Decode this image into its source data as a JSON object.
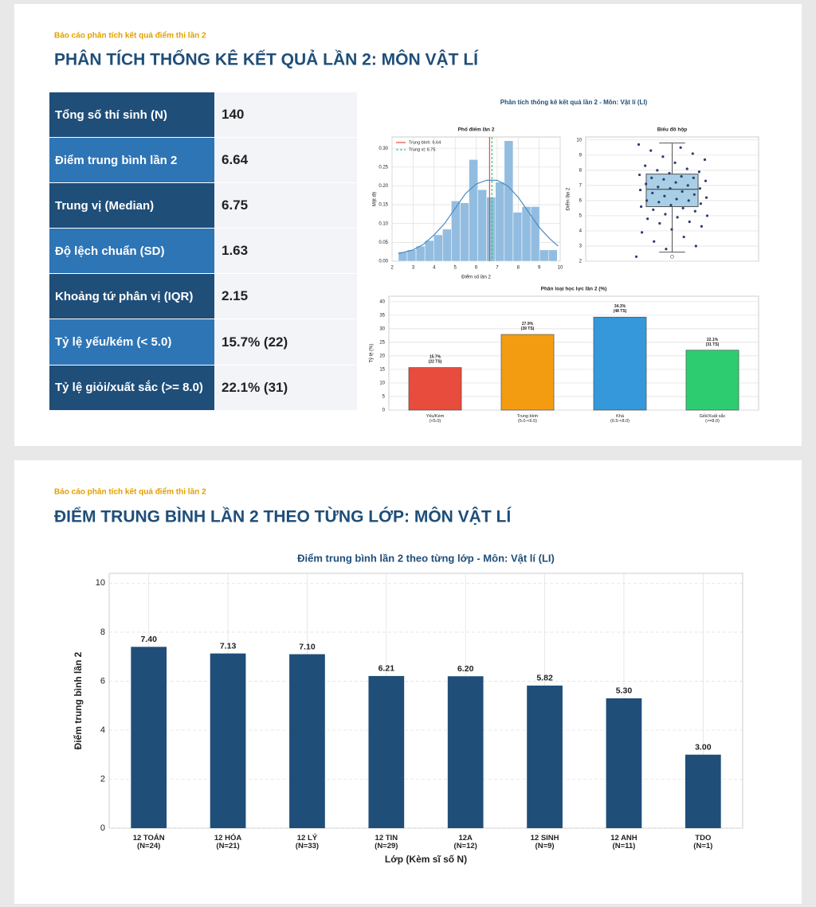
{
  "slides": [
    {
      "kicker": "Báo cáo phân tích kết quả điểm thi lần 2",
      "title": "PHÂN TÍCH THỐNG KÊ KẾT QUẢ LẦN 2: MÔN VẬT LÍ",
      "table": {
        "rows": [
          [
            "Tổng số thí sinh (N)",
            "140"
          ],
          [
            "Điểm trung bình lần 2",
            "6.64"
          ],
          [
            "Trung vị (Median)",
            "6.75"
          ],
          [
            "Độ lệch chuẩn (SD)",
            "1.63"
          ],
          [
            "Khoảng tứ phân vị (IQR)",
            "2.15"
          ],
          [
            "Tỷ lệ yếu/kém (< 5.0)",
            "15.7% (22)"
          ],
          [
            "Tỷ lệ giỏi/xuất sắc (>= 8.0)",
            "22.1% (31)"
          ]
        ]
      },
      "figure_title": "Phân tích thống kê kết quả lần 2 - Môn: Vật lí (LI)"
    },
    {
      "kicker": "Báo cáo phân tích kết quả điểm thi lần 2",
      "title": "ĐIỂM TRUNG BÌNH LẦN 2 THEO TỪNG LỚP: MÔN VẬT LÍ"
    }
  ],
  "chart_data": [
    {
      "type": "histogram",
      "title": "Phổ điểm lần 2",
      "xlabel": "Điểm số lần 2",
      "ylabel": "Mật độ",
      "bins": [
        2.3,
        2.72,
        3.14,
        3.56,
        3.98,
        4.4,
        4.82,
        5.24,
        5.66,
        6.08,
        6.5,
        6.92,
        7.34,
        7.76,
        8.18,
        8.6,
        9.02,
        9.44,
        9.86
      ],
      "values": [
        0.025,
        0.03,
        0.04,
        0.055,
        0.07,
        0.085,
        0.16,
        0.155,
        0.27,
        0.19,
        0.17,
        0.21,
        0.32,
        0.13,
        0.145,
        0.145,
        0.03,
        0.03
      ],
      "color": "#93bde0",
      "xlim": [
        2,
        10
      ],
      "xticks": [
        2,
        3,
        4,
        5,
        6,
        7,
        8,
        9,
        10
      ],
      "ylim": [
        0,
        0.33
      ],
      "yticks": [
        {
          "value": 0,
          "label": "0.00"
        },
        {
          "value": 0.05,
          "label": "0.05"
        },
        {
          "value": 0.1,
          "label": "0.10"
        },
        {
          "value": 0.15,
          "label": "0.15"
        },
        {
          "value": 0.2,
          "label": "0.20"
        },
        {
          "value": 0.25,
          "label": "0.25"
        },
        {
          "value": 0.3,
          "label": "0.30"
        }
      ],
      "kde": {
        "x": [
          2.3,
          3,
          3.5,
          4,
          4.5,
          5,
          5.5,
          6,
          6.5,
          7,
          7.5,
          8,
          8.5,
          9,
          9.5,
          9.9
        ],
        "y": [
          0.02,
          0.03,
          0.045,
          0.07,
          0.1,
          0.14,
          0.18,
          0.205,
          0.215,
          0.215,
          0.2,
          0.17,
          0.13,
          0.09,
          0.06,
          0.04
        ],
        "color": "#4a8cc2"
      },
      "vlines": [
        {
          "name": "Trung bình: 6.64",
          "value": 6.64,
          "color": "#e74c3c",
          "style": "solid"
        },
        {
          "name": "Trung vị: 6.75",
          "value": 6.75,
          "color": "#2ecc71",
          "style": "dashed"
        }
      ],
      "grid": true,
      "legend": "upper left"
    },
    {
      "type": "box",
      "title": "Biểu đồ hộp",
      "ylabel": "Điểm lần 2",
      "ylim": [
        2,
        10.2
      ],
      "yticks": [
        2,
        3,
        4,
        5,
        6,
        7,
        8,
        9,
        10
      ],
      "whisker_low": 2.6,
      "q1": 5.6,
      "median": 6.75,
      "q3": 7.75,
      "whisker_high": 9.8,
      "outliers": [
        2.3
      ],
      "box_color": "#a9cfe6",
      "point_color": "#2c3e70",
      "points": [
        2.3,
        2.8,
        3.0,
        3.3,
        3.6,
        3.9,
        4.1,
        4.3,
        4.5,
        4.6,
        4.8,
        4.9,
        5.0,
        5.1,
        5.3,
        5.4,
        5.5,
        5.6,
        5.7,
        5.8,
        5.9,
        6.0,
        6.0,
        6.1,
        6.2,
        6.3,
        6.4,
        6.5,
        6.6,
        6.7,
        6.8,
        6.8,
        6.9,
        7.0,
        7.1,
        7.2,
        7.3,
        7.4,
        7.5,
        7.5,
        7.6,
        7.7,
        7.8,
        7.9,
        8.0,
        8.1,
        8.3,
        8.5,
        8.7,
        8.9,
        9.1,
        9.3,
        9.5,
        9.7
      ],
      "grid": true
    },
    {
      "type": "bar",
      "title": "Phân loại học lực lần 2 (%)",
      "ylabel": "Tỷ lệ (%)",
      "categories": [
        "Yếu/Kém\n(<5.0)",
        "Trung bình\n(5.0-<6.5)",
        "Khá\n(6.5-<8.0)",
        "Giỏi/Xuất sắc\n(>=8.0)"
      ],
      "values": [
        15.7,
        27.9,
        34.3,
        22.1
      ],
      "value_labels": [
        "15.7%\n(22 TS)",
        "27.9%\n(39 TS)",
        "34.3%\n(48 TS)",
        "22.1%\n(31 TS)"
      ],
      "colors": [
        "#e74c3c",
        "#f39c12",
        "#3498db",
        "#2ecc71"
      ],
      "ylim": [
        0,
        42
      ],
      "yticks": [
        0,
        5,
        10,
        15,
        20,
        25,
        30,
        35,
        40
      ],
      "grid": true
    },
    {
      "type": "bar",
      "title": "Điểm trung bình lần 2 theo từng lớp - Môn: Vật lí (LI)",
      "xlabel": "Lớp (Kèm sĩ số N)",
      "ylabel": "Điểm trung bình lần 2",
      "categories": [
        "12 TOÁN\n(N=24)",
        "12 HÓA\n(N=21)",
        "12 LÝ\n(N=33)",
        "12 TIN\n(N=29)",
        "12A\n(N=12)",
        "12 SINH\n(N=9)",
        "12 ANH\n(N=11)",
        "TDO\n(N=1)"
      ],
      "values": [
        7.4,
        7.13,
        7.1,
        6.21,
        6.2,
        5.82,
        5.3,
        3.0
      ],
      "value_labels": [
        "7.40",
        "7.13",
        "7.10",
        "6.21",
        "6.20",
        "5.82",
        "5.30",
        "3.00"
      ],
      "color": "#1f4e79",
      "ylim": [
        0,
        10.4
      ],
      "yticks": [
        0,
        2,
        4,
        6,
        8,
        10
      ],
      "grid": true
    }
  ]
}
